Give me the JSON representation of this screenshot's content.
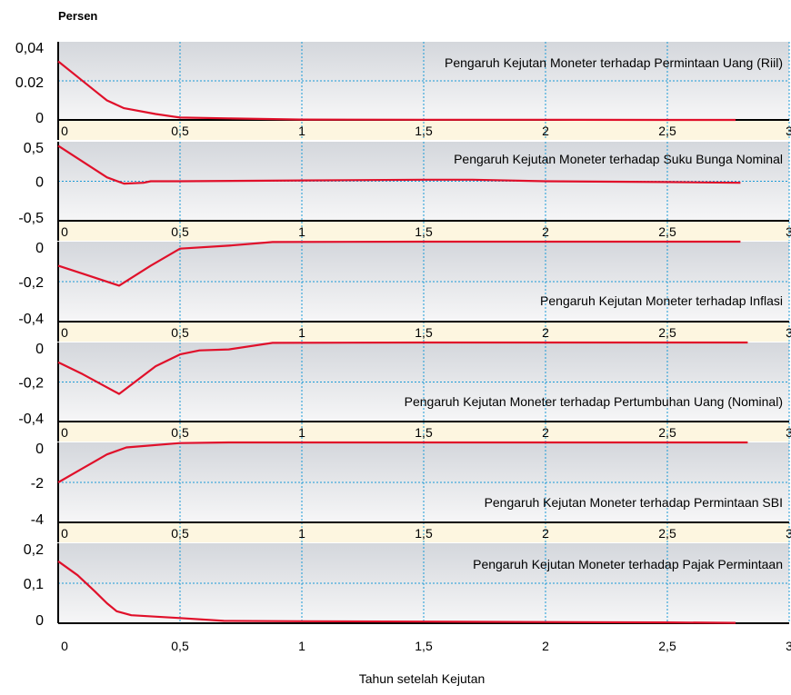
{
  "y_unit_label": "Persen",
  "x_axis_label": "Tahun setelah Kejutan",
  "colors": {
    "line": "#e0102a",
    "grid": "#1a9ad6",
    "axis": "#000000",
    "band": "#fdf6e0",
    "panel_top": "#d4d7dc",
    "panel_bottom": "#f6f6f7"
  },
  "chart_data": [
    {
      "type": "line",
      "title": "Pengaruh Kejutan Moneter terhadap Permintaan Uang (Riil)",
      "x": [
        0,
        0.08,
        0.15,
        0.2,
        0.27,
        0.4,
        0.5,
        0.7,
        1.0,
        1.5,
        2.0,
        2.5,
        2.78
      ],
      "series": [
        {
          "values": [
            0.03,
            0.022,
            0.015,
            0.01,
            0.006,
            0.003,
            0.0012,
            0.0008,
            0.0002,
            0.0001,
            0.0001,
            0.0,
            0.0
          ]
        }
      ],
      "ylim": [
        0,
        0.04
      ],
      "yticks": [
        "0",
        "0.02",
        "0,04"
      ],
      "xticks": [
        "0",
        "0,5",
        "1",
        "1,5",
        "2",
        "2,5",
        "3"
      ]
    },
    {
      "type": "line",
      "title": "Pengaruh Kejutan Moneter terhadap Suku Bunga Nominal",
      "x": [
        0,
        0.1,
        0.2,
        0.27,
        0.35,
        0.38,
        0.5,
        1.0,
        1.5,
        1.7,
        2.0,
        2.5,
        2.8
      ],
      "series": [
        {
          "values": [
            0.45,
            0.25,
            0.05,
            -0.03,
            -0.02,
            0.0,
            0.0,
            0.01,
            0.02,
            0.02,
            0.0,
            -0.01,
            -0.02
          ]
        }
      ],
      "ylim": [
        -0.5,
        0.5
      ],
      "yticks": [
        "-0,5",
        "0",
        "0,5"
      ],
      "xticks": [
        "0",
        "0,5",
        "1",
        "1,5",
        "2",
        "2,5",
        "3"
      ]
    },
    {
      "type": "line",
      "title": "Pengaruh Kejutan Moneter terhadap Inflasi",
      "x": [
        0,
        0.1,
        0.25,
        0.38,
        0.5,
        0.7,
        0.88,
        1.5,
        2.0,
        2.5,
        2.8
      ],
      "series": [
        {
          "values": [
            -0.12,
            -0.16,
            -0.22,
            -0.12,
            -0.035,
            -0.02,
            -0.002,
            0.0,
            0.0,
            0.0,
            0.0
          ]
        }
      ],
      "ylim": [
        -0.4,
        0
      ],
      "yticks": [
        "-0,4",
        "-0,2",
        "0"
      ],
      "xticks": [
        "0",
        "0,5",
        "1",
        "1,5",
        "2",
        "2,5",
        "3"
      ]
    },
    {
      "type": "line",
      "title": "Pengaruh Kejutan Moneter terhadap Pertumbuhan Uang (Nominal)",
      "x": [
        0,
        0.1,
        0.25,
        0.4,
        0.5,
        0.58,
        0.7,
        0.88,
        1.5,
        2.0,
        2.5,
        2.83
      ],
      "series": [
        {
          "values": [
            -0.1,
            -0.16,
            -0.26,
            -0.12,
            -0.06,
            -0.04,
            -0.035,
            -0.002,
            0.0,
            0.0,
            0.0,
            0.0
          ]
        }
      ],
      "ylim": [
        -0.4,
        0
      ],
      "yticks": [
        "-0,4",
        "-0,2",
        "0"
      ],
      "xticks": [
        "0",
        "0,5",
        "1",
        "1,5",
        "2",
        "2,5",
        "3"
      ]
    },
    {
      "type": "line",
      "title": "Pengaruh Kejutan Moneter terhadap Permintaan SBI",
      "x": [
        0,
        0.1,
        0.2,
        0.28,
        0.5,
        0.7,
        1.0,
        1.5,
        2.0,
        2.5,
        2.83
      ],
      "series": [
        {
          "values": [
            -2.0,
            -1.3,
            -0.6,
            -0.25,
            -0.03,
            0.0,
            0.0,
            0.0,
            0.0,
            0.0,
            0.0
          ]
        }
      ],
      "ylim": [
        -4,
        0
      ],
      "yticks": [
        "-4",
        "-2",
        "0"
      ],
      "xticks": [
        "0",
        "0,5",
        "1",
        "1,5",
        "2",
        "2,5",
        "3"
      ]
    },
    {
      "type": "line",
      "title": "Pengaruh Kejutan Moneter terhadap Pajak Permintaan",
      "x": [
        0,
        0.08,
        0.15,
        0.2,
        0.24,
        0.3,
        0.5,
        0.68,
        1.0,
        1.5,
        2.0,
        2.5,
        2.78
      ],
      "series": [
        {
          "values": [
            0.155,
            0.12,
            0.08,
            0.05,
            0.03,
            0.02,
            0.013,
            0.006,
            0.005,
            0.004,
            0.003,
            0.002,
            0.001
          ]
        }
      ],
      "ylim": [
        0,
        0.2
      ],
      "yticks": [
        "0",
        "0,1",
        "0,2"
      ],
      "xticks": [
        "0",
        "0,5",
        "1",
        "1,5",
        "2",
        "2,5",
        "3"
      ]
    }
  ]
}
